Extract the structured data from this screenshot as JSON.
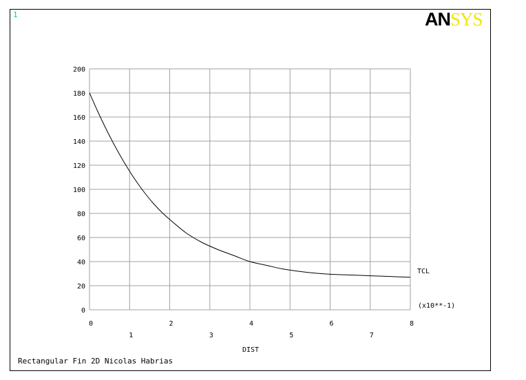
{
  "window_number": "1",
  "logo": {
    "part1": "AN",
    "part2": "SYS"
  },
  "footer_title": "Rectangular Fin 2D Nicolas Habrias",
  "colors": {
    "logo_dark": "#000000",
    "logo_yellow": "#f2e600",
    "window_number": "#00c8c8",
    "grid": "#a0a0a0"
  },
  "chart_data": {
    "type": "line",
    "xlabel": "DIST",
    "x_multiplier_label": "(x10**-1)",
    "xlim": [
      0,
      8
    ],
    "ylim": [
      0,
      200
    ],
    "x_ticks_upper": [
      "0",
      "2",
      "4",
      "6",
      "8"
    ],
    "x_ticks_lower": [
      "1",
      "3",
      "5",
      "7"
    ],
    "y_ticks": [
      "0",
      "20",
      "40",
      "60",
      "80",
      "100",
      "120",
      "140",
      "160",
      "180",
      "200"
    ],
    "grid": true,
    "series": [
      {
        "name": "TCL",
        "x": [
          0,
          0.2,
          0.4,
          0.6,
          0.8,
          1.0,
          1.2,
          1.4,
          1.6,
          1.8,
          2.0,
          2.4,
          2.8,
          3.2,
          3.6,
          4.0,
          4.4,
          4.8,
          5.2,
          5.6,
          6.0,
          6.4,
          6.8,
          7.2,
          7.6,
          8.0
        ],
        "y": [
          180,
          165,
          151,
          138,
          126,
          115,
          105,
          96,
          88,
          81,
          75,
          64,
          56,
          50,
          45,
          40,
          37,
          34,
          32,
          30.5,
          29.5,
          29,
          28.5,
          28,
          27.5,
          27
        ]
      }
    ]
  }
}
